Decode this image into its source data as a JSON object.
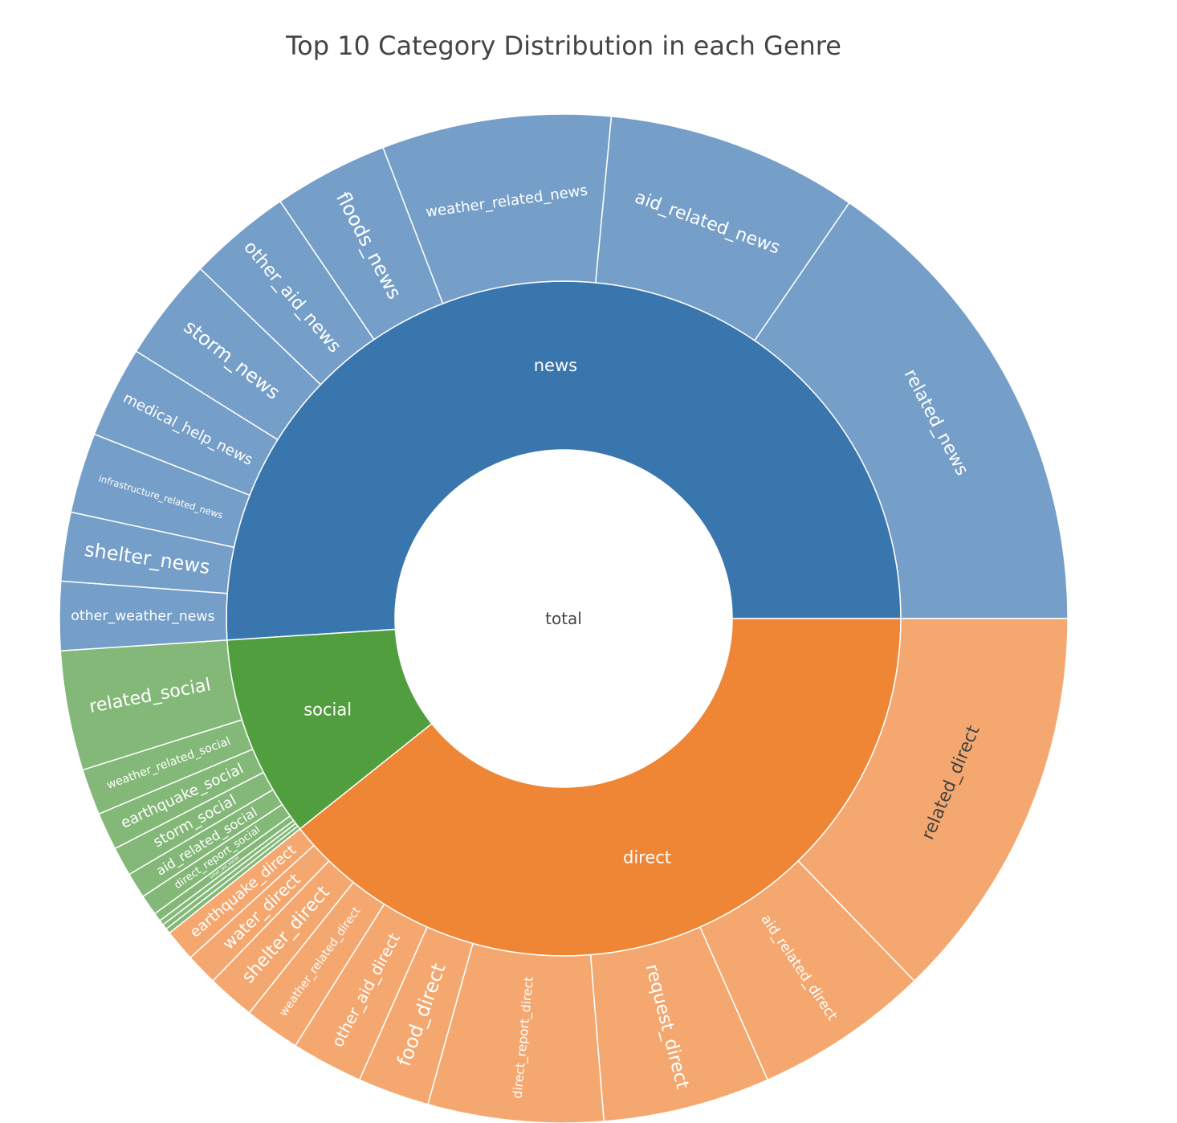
{
  "chart_data": {
    "type": "sunburst",
    "title": "Top 10 Category Distribution in each Genre",
    "root": "total",
    "colors": {
      "news": "#3a76ae",
      "news_leaf": "#759fc8",
      "direct": "#ef8636",
      "direct_leaf": "#f4a870",
      "social": "#519e3e",
      "social_leaf": "#84b878"
    },
    "genres": [
      {
        "name": "news",
        "value": 100,
        "children": [
          {
            "name": "related_news",
            "value": 21
          },
          {
            "name": "aid_related_news",
            "value": 11
          },
          {
            "name": "weather_related_news",
            "value": 10
          },
          {
            "name": "floods_news",
            "value": 5
          },
          {
            "name": "other_aid_news",
            "value": 4.5
          },
          {
            "name": "storm_news",
            "value": 4.5
          },
          {
            "name": "medical_help_news",
            "value": 4
          },
          {
            "name": "infrastructure_related_news",
            "value": 3.5
          },
          {
            "name": "shelter_news",
            "value": 3
          },
          {
            "name": "other_weather_news",
            "value": 3
          }
        ]
      },
      {
        "name": "social",
        "value": 19,
        "children": [
          {
            "name": "related_social",
            "value": 7
          },
          {
            "name": "weather_related_social",
            "value": 2.7
          },
          {
            "name": "earthquake_social",
            "value": 2.2
          },
          {
            "name": "storm_social",
            "value": 1.7
          },
          {
            "name": "aid_related_social",
            "value": 1.5
          },
          {
            "name": "direct_report_social",
            "value": 1.2
          },
          {
            "name": "other_aid_social",
            "value": 0.5
          },
          {
            "name": "",
            "value": 0.3
          },
          {
            "name": "",
            "value": 0.3
          },
          {
            "name": "",
            "value": 0.3
          }
        ]
      },
      {
        "name": "direct",
        "value": 77,
        "children": [
          {
            "name": "earthquake_direct",
            "value": 2
          },
          {
            "name": "water_direct",
            "value": 2
          },
          {
            "name": "shelter_direct",
            "value": 3
          },
          {
            "name": "weather_related_direct",
            "value": 3.5
          },
          {
            "name": "other_aid_direct",
            "value": 4.5
          },
          {
            "name": "food_direct",
            "value": 4.5
          },
          {
            "name": "direct_report_direct",
            "value": 11
          },
          {
            "name": "request_direct",
            "value": 10.5
          },
          {
            "name": "aid_related_direct",
            "value": 11
          },
          {
            "name": "related_direct",
            "value": 25
          }
        ]
      }
    ]
  }
}
